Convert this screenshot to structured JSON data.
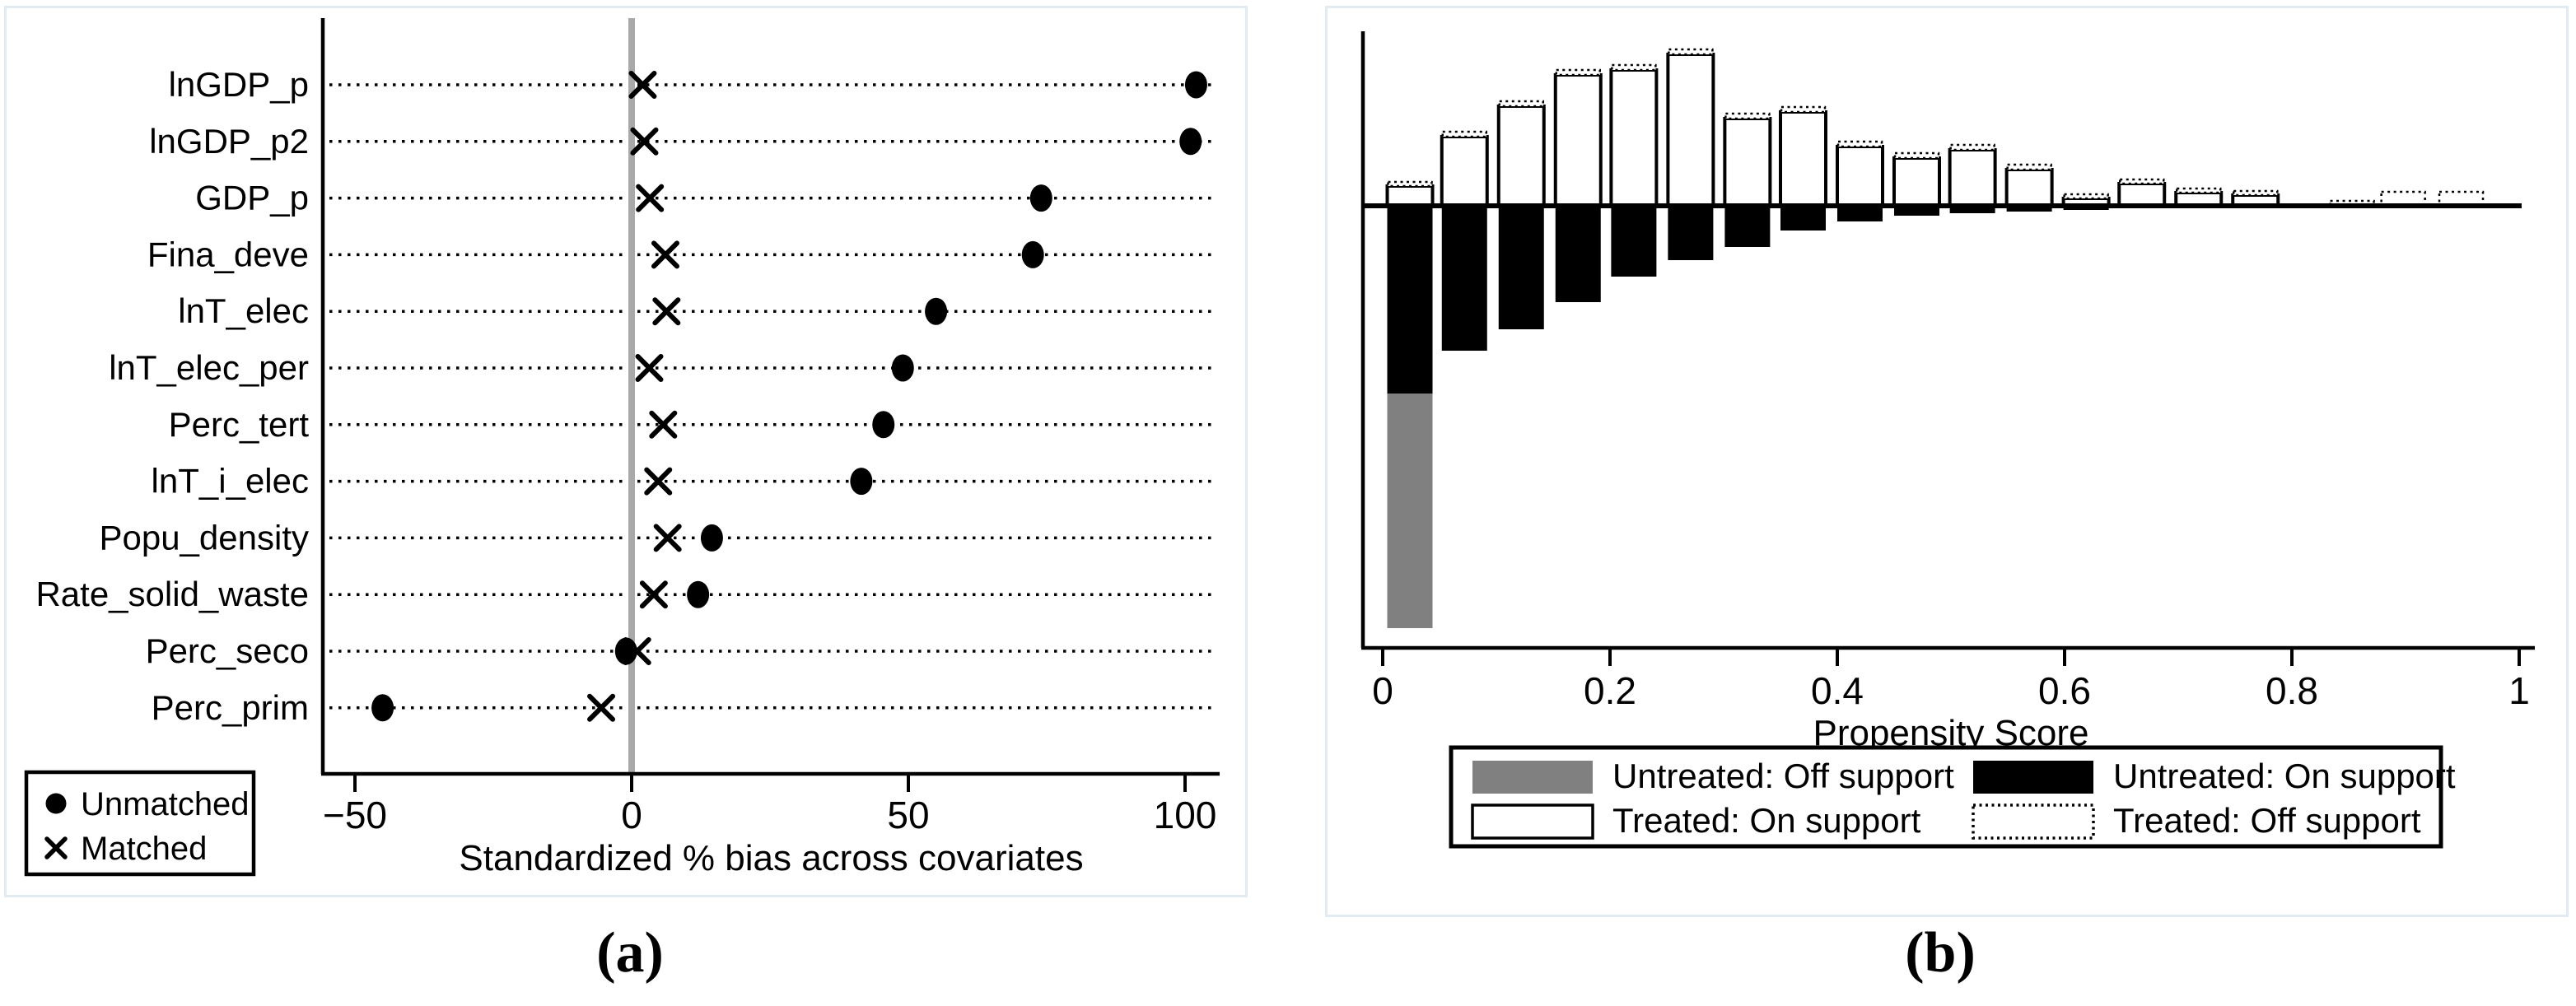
{
  "captions": {
    "a": "(a)",
    "b": "(b)"
  },
  "colors": {
    "black": "#000000",
    "white": "#ffffff",
    "gray_bar": "#808080",
    "zero_line_gray": "#a9a9a9",
    "panel_border": "#e2ebf2",
    "background": "#ffffff"
  },
  "chart_data": [
    {
      "id": "a",
      "type": "scatter",
      "subtype": "covariate balance dot plot (Stata pstest style)",
      "xlabel": "Standardized % bias across covariates",
      "xticks": [
        -50,
        0,
        50,
        100
      ],
      "xtick_labels": [
        "−50",
        "0",
        "50",
        "100"
      ],
      "xlim": [
        -55.8,
        106.2
      ],
      "zero_line": true,
      "grid": "dotted horizontal leader per category",
      "legend_position": "bottom-left outside plot",
      "categories": [
        "lnGDP_p",
        "lnGDP_p2",
        "GDP_p",
        "Fina_deve",
        "lnT_elec",
        "lnT_elec_per",
        "Perc_tert",
        "lnT_i_elec",
        "Popu_density",
        "Rate_solid_waste",
        "Perc_seco",
        "Perc_prim"
      ],
      "series": [
        {
          "name": "Unmatched",
          "marker": "filled-circle",
          "values": [
            102,
            101,
            74,
            72.5,
            55,
            49,
            45.5,
            41.5,
            14.5,
            12,
            -1,
            -45
          ]
        },
        {
          "name": "Matched",
          "marker": "x",
          "values": [
            2,
            2.3,
            3.3,
            6.1,
            6.3,
            3.2,
            5.7,
            4.8,
            6.5,
            4,
            1,
            -5.5
          ]
        }
      ]
    },
    {
      "id": "b",
      "type": "bar",
      "subtype": "propensity score common-support histogram (Stata psgraph style)",
      "xlabel": "Propensity Score",
      "xticks": [
        0,
        0.2,
        0.4,
        0.6,
        0.8,
        1
      ],
      "xtick_labels": [
        "0",
        "0.2",
        "0.4",
        "0.6",
        "0.8",
        "1"
      ],
      "xlim": [
        -0.02,
        1.02
      ],
      "bin_width": 0.05,
      "y_axis": "none shown; heights are relative frequencies (units = source-figure pixels, up = treated, down = untreated)",
      "legend": [
        {
          "label": "Untreated: Off support",
          "swatch": "gray-fill"
        },
        {
          "label": "Untreated: On support",
          "swatch": "black-fill"
        },
        {
          "label": "Treated: On support",
          "swatch": "white-outline"
        },
        {
          "label": "Treated: Off support",
          "swatch": "dotted-outline"
        }
      ],
      "bars": [
        {
          "p": 0.004,
          "treated_on": 24,
          "treated_off": 5,
          "untreated_on": 228,
          "untreated_off": 285
        },
        {
          "p": 0.052,
          "treated_on": 84,
          "treated_off": 6,
          "untreated_on": 176,
          "untreated_off": 0
        },
        {
          "p": 0.102,
          "treated_on": 121,
          "treated_off": 6,
          "untreated_on": 150,
          "untreated_off": 0
        },
        {
          "p": 0.152,
          "treated_on": 159,
          "treated_off": 6,
          "untreated_on": 117,
          "untreated_off": 0
        },
        {
          "p": 0.201,
          "treated_on": 165,
          "treated_off": 6,
          "untreated_on": 86,
          "untreated_off": 0
        },
        {
          "p": 0.251,
          "treated_on": 184,
          "treated_off": 6,
          "untreated_on": 66,
          "untreated_off": 0
        },
        {
          "p": 0.301,
          "treated_on": 106,
          "treated_off": 6,
          "untreated_on": 50,
          "untreated_off": 0
        },
        {
          "p": 0.35,
          "treated_on": 114,
          "treated_off": 6,
          "untreated_on": 30,
          "untreated_off": 0
        },
        {
          "p": 0.4,
          "treated_on": 72,
          "treated_off": 6,
          "untreated_on": 19,
          "untreated_off": 0
        },
        {
          "p": 0.45,
          "treated_on": 58,
          "treated_off": 6,
          "untreated_on": 12,
          "untreated_off": 0
        },
        {
          "p": 0.499,
          "treated_on": 68,
          "treated_off": 6,
          "untreated_on": 9,
          "untreated_off": 0
        },
        {
          "p": 0.549,
          "treated_on": 44,
          "treated_off": 6,
          "untreated_on": 7,
          "untreated_off": 0
        },
        {
          "p": 0.599,
          "treated_on": 9,
          "treated_off": 5,
          "untreated_on": 5,
          "untreated_off": 0
        },
        {
          "p": 0.648,
          "treated_on": 27,
          "treated_off": 5,
          "untreated_on": 3,
          "untreated_off": 0
        },
        {
          "p": 0.698,
          "treated_on": 16,
          "treated_off": 5,
          "untreated_on": 2,
          "untreated_off": 0
        },
        {
          "p": 0.748,
          "treated_on": 13,
          "treated_off": 5,
          "untreated_on": 2,
          "untreated_off": 0
        },
        {
          "p": 0.798,
          "treated_on": 0,
          "treated_off": 0,
          "untreated_on": 3,
          "untreated_off": 0
        },
        {
          "p": 0.833,
          "treated_on": 0,
          "treated_off": 6,
          "untreated_on": 0,
          "untreated_off": 0
        },
        {
          "p": 0.878,
          "treated_on": 0,
          "treated_off": 17,
          "untreated_on": 0,
          "untreated_off": 0
        },
        {
          "p": 0.929,
          "treated_on": 0,
          "treated_off": 17,
          "untreated_on": 0,
          "untreated_off": 0
        }
      ]
    }
  ]
}
